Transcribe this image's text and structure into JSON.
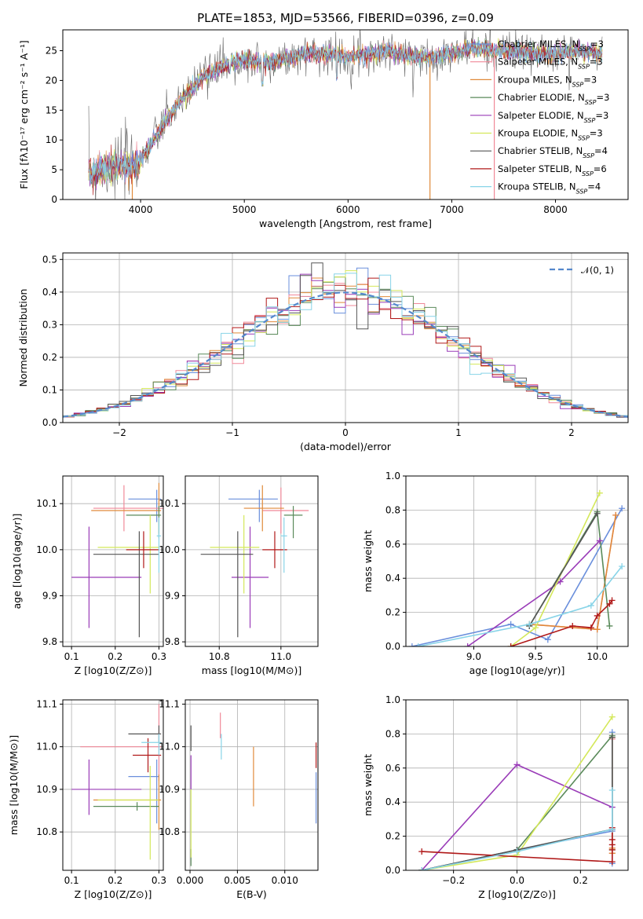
{
  "title": "PLATE=1853, MJD=53566, FIBERID=0396, z=0.09",
  "colors": {
    "Chabrier MILES": "#6a8fdc",
    "Salpeter MILES": "#f08898",
    "Kroupa MILES": "#e08a3a",
    "Chabrier ELODIE": "#5a8a5a",
    "Salpeter ELODIE": "#9a3cb8",
    "Kroupa ELODIE": "#d4e85a",
    "Chabrier STELIB": "#555555",
    "Salpeter STELIB": "#b01818",
    "Kroupa STELIB": "#88d4e8"
  },
  "chart_data": [
    {
      "type": "line",
      "panel": "spectrum",
      "title": "PLATE=1853, MJD=53566, FIBERID=0396, z=0.09",
      "xlabel": "wavelength [Angstrom, rest frame]",
      "ylabel": "Flux [fλ10⁻¹⁷ erg cm⁻² s⁻¹ A⁻¹]",
      "xlim": [
        3250,
        8700
      ],
      "ylim": [
        0,
        28.5
      ],
      "xticks": [
        4000,
        5000,
        6000,
        7000,
        8000
      ],
      "yticks": [
        0,
        5,
        10,
        15,
        20,
        25
      ],
      "grid": false,
      "legend_position": "top-right",
      "legend": [
        {
          "name": "Chabrier MILES",
          "nssp": "3"
        },
        {
          "name": "Salpeter MILES",
          "nssp": "3"
        },
        {
          "name": "Kroupa MILES",
          "nssp": "3"
        },
        {
          "name": "Chabrier ELODIE",
          "nssp": "3"
        },
        {
          "name": "Salpeter ELODIE",
          "nssp": "3"
        },
        {
          "name": "Kroupa ELODIE",
          "nssp": "3"
        },
        {
          "name": "Chabrier STELIB",
          "nssp": "4"
        },
        {
          "name": "Salpeter STELIB",
          "nssp": "6"
        },
        {
          "name": "Kroupa STELIB",
          "nssp": "4"
        }
      ],
      "continuum": {
        "x": [
          3500,
          3700,
          3900,
          4000,
          4200,
          4400,
          4600,
          4800,
          5000,
          5200,
          5400,
          5600,
          5800,
          6000,
          6200,
          6400,
          6600,
          6800,
          7000,
          7200,
          7400,
          7600,
          7800,
          8000,
          8200,
          8400
        ],
        "y": [
          4.5,
          5.5,
          5.5,
          6.5,
          12,
          17,
          20.5,
          22.5,
          23.5,
          23,
          23.5,
          24.5,
          24.5,
          24,
          24.5,
          25,
          24,
          24,
          24.5,
          25.5,
          25,
          25,
          24.5,
          24.5,
          25,
          24.5
        ]
      },
      "features": [
        {
          "x": 5175,
          "y": 19
        },
        {
          "x": 5890,
          "y": 20
        },
        {
          "x": 4340,
          "y": 17
        },
        {
          "x": 4860,
          "y": 21
        }
      ],
      "spikes": [
        {
          "series": "Kroupa MILES",
          "x": 3920,
          "y": 0
        },
        {
          "series": "Kroupa MILES",
          "x": 6790,
          "y": 0
        },
        {
          "series": "Salpeter MILES",
          "x": 7410,
          "y": 0
        },
        {
          "series": "Salpeter STELIB",
          "x": 3890,
          "y": 5.8
        }
      ]
    },
    {
      "type": "histogram",
      "panel": "residuals",
      "xlabel": "(data-model)/error",
      "ylabel": "Normed distribution",
      "xlim": [
        -2.5,
        2.5
      ],
      "ylim": [
        0,
        0.52
      ],
      "xticks": [
        -2,
        -1,
        0,
        1,
        2
      ],
      "yticks": [
        0.0,
        0.1,
        0.2,
        0.3,
        0.4,
        0.5
      ],
      "grid": true,
      "legend_position": "top-right",
      "reference": {
        "name": "𝒩(0, 1)",
        "dist": "gaussian",
        "mu": 0,
        "sigma": 1
      },
      "bin_width": 0.1,
      "bin_start": -2.5,
      "series_names": [
        "Chabrier MILES",
        "Salpeter MILES",
        "Kroupa MILES",
        "Chabrier ELODIE",
        "Salpeter ELODIE",
        "Kroupa ELODIE",
        "Chabrier STELIB",
        "Salpeter STELIB",
        "Kroupa STELIB"
      ]
    },
    {
      "type": "scatter",
      "panel": "age_vs_Z",
      "xlabel": "Z [log10(Z/Z⊙)]",
      "ylabel": "age  [log10(age/yr)]",
      "xlim": [
        0.08,
        0.31
      ],
      "ylim": [
        9.79,
        10.16
      ],
      "xticks": [
        0.1,
        0.2,
        0.3
      ],
      "yticks": [
        9.8,
        9.9,
        10.0,
        10.1
      ],
      "grid": true,
      "points": [
        {
          "series": "Chabrier MILES",
          "x": 0.295,
          "xerr": [
            0.065,
            0.01
          ],
          "y": 10.11,
          "yerr": [
            0.05,
            0.02
          ]
        },
        {
          "series": "Salpeter MILES",
          "x": 0.22,
          "xerr": [
            0.07,
            0.09
          ],
          "y": 10.09,
          "yerr": [
            0.05,
            0.05
          ]
        },
        {
          "series": "Kroupa MILES",
          "x": 0.3,
          "xerr": [
            0.155,
            0.005
          ],
          "y": 10.085,
          "yerr": [
            0.05,
            0.06
          ]
        },
        {
          "series": "Chabrier ELODIE",
          "x": 0.3,
          "xerr": [
            0.075,
            0.005
          ],
          "y": 10.075,
          "yerr": [
            0.05,
            0.02
          ]
        },
        {
          "series": "Salpeter ELODIE",
          "x": 0.14,
          "xerr": [
            0.04,
            0.12
          ],
          "y": 9.94,
          "yerr": [
            0.11,
            0.11
          ]
        },
        {
          "series": "Kroupa ELODIE",
          "x": 0.28,
          "xerr": [
            0.12,
            0.02
          ],
          "y": 10.005,
          "yerr": [
            0.1,
            0.07
          ]
        },
        {
          "series": "Chabrier STELIB",
          "x": 0.255,
          "xerr": [
            0.105,
            0.045
          ],
          "y": 9.99,
          "yerr": [
            0.18,
            0.05
          ]
        },
        {
          "series": "Salpeter STELIB",
          "x": 0.265,
          "xerr": [
            0.04,
            0.035
          ],
          "y": 10.0,
          "yerr": [
            0.04,
            0.04
          ]
        },
        {
          "series": "Kroupa STELIB",
          "x": 0.3,
          "xerr": [
            0.005,
            0.005
          ],
          "y": 10.03,
          "yerr": [
            0.08,
            0.04
          ]
        }
      ]
    },
    {
      "type": "scatter",
      "panel": "age_vs_mass",
      "xlabel": "mass [log10(M/M⊙)]",
      "ylabel": "",
      "xlim": [
        10.69,
        11.12
      ],
      "ylim": [
        9.79,
        10.16
      ],
      "xticks": [
        10.8,
        11.0
      ],
      "yticks": [
        9.8,
        9.9,
        10.0,
        10.1
      ],
      "grid": true,
      "points": [
        {
          "series": "Chabrier MILES",
          "x": 10.93,
          "xerr": [
            0.1,
            0.06
          ],
          "y": 10.11,
          "yerr": [
            0.05,
            0.02
          ]
        },
        {
          "series": "Salpeter MILES",
          "x": 11.0,
          "xerr": [
            0.06,
            0.09
          ],
          "y": 10.085,
          "yerr": [
            0.05,
            0.05
          ]
        },
        {
          "series": "Kroupa MILES",
          "x": 10.94,
          "xerr": [
            0.06,
            0.07
          ],
          "y": 10.09,
          "yerr": [
            0.05,
            0.05
          ]
        },
        {
          "series": "Chabrier ELODIE",
          "x": 11.04,
          "xerr": [
            0.03,
            0.03
          ],
          "y": 10.075,
          "yerr": [
            0.05,
            0.02
          ]
        },
        {
          "series": "Salpeter ELODIE",
          "x": 10.9,
          "xerr": [
            0.06,
            0.06
          ],
          "y": 9.94,
          "yerr": [
            0.11,
            0.11
          ]
        },
        {
          "series": "Kroupa ELODIE",
          "x": 10.88,
          "xerr": [
            0.11,
            0.05
          ],
          "y": 10.005,
          "yerr": [
            0.1,
            0.07
          ]
        },
        {
          "series": "Chabrier STELIB",
          "x": 10.86,
          "xerr": [
            0.12,
            0.05
          ],
          "y": 9.99,
          "yerr": [
            0.18,
            0.05
          ]
        },
        {
          "series": "Salpeter STELIB",
          "x": 10.98,
          "xerr": [
            0.04,
            0.04
          ],
          "y": 10.0,
          "yerr": [
            0.04,
            0.04
          ]
        },
        {
          "series": "Kroupa STELIB",
          "x": 11.01,
          "xerr": [
            0.01,
            0.01
          ],
          "y": 10.03,
          "yerr": [
            0.08,
            0.04
          ]
        }
      ]
    },
    {
      "type": "line",
      "panel": "weight_vs_age",
      "xlabel": "age  [log10(age/yr)]",
      "ylabel": "mass weight",
      "xlim": [
        8.45,
        10.25
      ],
      "ylim": [
        0,
        1.0
      ],
      "xticks": [
        9.0,
        9.5,
        10.0
      ],
      "yticks": [
        0.0,
        0.2,
        0.4,
        0.6,
        0.8,
        1.0
      ],
      "grid": true,
      "series": [
        {
          "name": "Chabrier MILES",
          "x": [
            8.5,
            9.3,
            9.6,
            10.2
          ],
          "y": [
            0.0,
            0.13,
            0.04,
            0.81
          ]
        },
        {
          "name": "Salpeter MILES",
          "x": [
            9.45,
            10.0,
            10.15
          ],
          "y": [
            0.13,
            0.1,
            0.77
          ]
        },
        {
          "name": "Kroupa MILES",
          "x": [
            9.45,
            10.0,
            10.15
          ],
          "y": [
            0.13,
            0.1,
            0.77
          ]
        },
        {
          "name": "Chabrier ELODIE",
          "x": [
            9.45,
            10.0,
            10.1
          ],
          "y": [
            0.12,
            0.79,
            0.12
          ]
        },
        {
          "name": "Salpeter ELODIE",
          "x": [
            8.95,
            9.7,
            10.02
          ],
          "y": [
            0.0,
            0.38,
            0.62
          ]
        },
        {
          "name": "Kroupa ELODIE",
          "x": [
            9.3,
            9.5,
            10.02
          ],
          "y": [
            0.0,
            0.11,
            0.9
          ]
        },
        {
          "name": "Chabrier STELIB",
          "x": [
            9.45,
            10.0
          ],
          "y": [
            0.12,
            0.78
          ]
        },
        {
          "name": "Salpeter STELIB",
          "x": [
            9.3,
            9.8,
            9.95,
            10.0,
            10.1,
            10.12
          ],
          "y": [
            0.0,
            0.12,
            0.11,
            0.18,
            0.25,
            0.27
          ]
        },
        {
          "name": "Kroupa STELIB",
          "x": [
            8.55,
            9.45,
            9.95,
            10.2
          ],
          "y": [
            0.0,
            0.13,
            0.24,
            0.47
          ]
        }
      ]
    },
    {
      "type": "scatter",
      "panel": "mass_vs_Z",
      "xlabel": "Z [log10(Z/Z⊙)]",
      "ylabel": "mass [log10(M/M⊙)]",
      "xlim": [
        0.08,
        0.31
      ],
      "ylim": [
        10.71,
        11.11
      ],
      "xticks": [
        0.1,
        0.2,
        0.3
      ],
      "yticks": [
        10.8,
        10.9,
        11.0,
        11.1
      ],
      "grid": true,
      "points": [
        {
          "series": "Chabrier MILES",
          "x": 0.295,
          "xerr": [
            0.065,
            0.005
          ],
          "y": 10.93,
          "yerr": [
            0.11,
            0.04
          ]
        },
        {
          "series": "Salpeter MILES",
          "x": 0.3,
          "xerr": [
            0.18,
            0.005
          ],
          "y": 11.0,
          "yerr": [
            0.08,
            0.1
          ]
        },
        {
          "series": "Kroupa MILES",
          "x": 0.3,
          "xerr": [
            0.15,
            0.005
          ],
          "y": 10.875,
          "yerr": [
            0.07,
            0.06
          ]
        },
        {
          "series": "Chabrier ELODIE",
          "x": 0.25,
          "xerr": [
            0.1,
            0.05
          ],
          "y": 10.86,
          "yerr": [
            0.01,
            0.01
          ]
        },
        {
          "series": "Salpeter ELODIE",
          "x": 0.14,
          "xerr": [
            0.04,
            0.12
          ],
          "y": 10.9,
          "yerr": [
            0.06,
            0.07
          ]
        },
        {
          "series": "Kroupa ELODIE",
          "x": 0.28,
          "xerr": [
            0.12,
            0.02
          ],
          "y": 10.875,
          "yerr": [
            0.14,
            0.08
          ]
        },
        {
          "series": "Chabrier STELIB",
          "x": 0.3,
          "xerr": [
            0.07,
            0.005
          ],
          "y": 11.03,
          "yerr": [
            0.02,
            0.02
          ]
        },
        {
          "series": "Salpeter STELIB",
          "x": 0.275,
          "xerr": [
            0.035,
            0.03
          ],
          "y": 10.98,
          "yerr": [
            0.04,
            0.04
          ]
        },
        {
          "series": "Kroupa STELIB",
          "x": 0.3,
          "xerr": [
            0.04,
            0.005
          ],
          "y": 11.01,
          "yerr": [
            0.03,
            0.02
          ]
        }
      ]
    },
    {
      "type": "scatter",
      "panel": "mass_vs_EBV",
      "xlabel": "E(B-V)",
      "ylabel": "",
      "xlim": [
        -0.0005,
        0.0135
      ],
      "ylim": [
        10.71,
        11.11
      ],
      "xticks": [
        0.0,
        0.005,
        0.01
      ],
      "yticks": [
        10.8,
        10.9,
        11.0,
        11.1
      ],
      "xticklabels": [
        "0.000",
        "0.005",
        "0.010"
      ],
      "grid": true,
      "points": [
        {
          "series": "Chabrier MILES",
          "x": 0.0133,
          "y": 10.88,
          "yerr": [
            0.06,
            0.06
          ]
        },
        {
          "series": "Salpeter MILES",
          "x": 0.0032,
          "y": 11.05,
          "yerr": [
            0.03,
            0.03
          ]
        },
        {
          "series": "Kroupa MILES",
          "x": 0.0067,
          "y": 10.93,
          "yerr": [
            0.07,
            0.07
          ]
        },
        {
          "series": "Chabrier ELODIE",
          "x": 0.0001,
          "y": 10.74,
          "yerr": [
            0.02,
            0.02
          ]
        },
        {
          "series": "Salpeter ELODIE",
          "x": 0.0001,
          "y": 10.94,
          "yerr": [
            0.04,
            0.04
          ]
        },
        {
          "series": "Kroupa ELODIE",
          "x": 0.0001,
          "y": 10.82,
          "yerr": [
            0.08,
            0.08
          ]
        },
        {
          "series": "Chabrier STELIB",
          "x": 0.0001,
          "y": 11.02,
          "yerr": [
            0.03,
            0.03
          ]
        },
        {
          "series": "Salpeter STELIB",
          "x": 0.0133,
          "y": 10.98,
          "yerr": [
            0.03,
            0.03
          ]
        },
        {
          "series": "Kroupa STELIB",
          "x": 0.0033,
          "y": 11.0,
          "yerr": [
            0.03,
            0.03
          ]
        }
      ]
    },
    {
      "type": "line",
      "panel": "weight_vs_Z",
      "xlabel": "Z [log10(Z/Z⊙)]",
      "ylabel": "mass weight",
      "xlim": [
        -0.35,
        0.35
      ],
      "ylim": [
        0,
        1.0
      ],
      "xticks": [
        -0.2,
        0.0,
        0.2
      ],
      "yticks": [
        0.0,
        0.2,
        0.4,
        0.6,
        0.8,
        1.0
      ],
      "grid": true,
      "series": [
        {
          "name": "Chabrier MILES",
          "x": [
            -0.3,
            0.0,
            0.3,
            0.3,
            0.3
          ],
          "y": [
            0.0,
            0.12,
            0.23,
            0.81,
            0.04
          ]
        },
        {
          "name": "Salpeter MILES",
          "x": [
            0.3,
            0.3,
            0.3
          ],
          "y": [
            0.1,
            0.13,
            0.77
          ]
        },
        {
          "name": "Kroupa MILES",
          "x": [
            0.3,
            0.3,
            0.3
          ],
          "y": [
            0.1,
            0.13,
            0.78
          ]
        },
        {
          "name": "Chabrier ELODIE",
          "x": [
            -0.3,
            0.0,
            0.3,
            0.3
          ],
          "y": [
            0.0,
            0.12,
            0.79,
            0.12
          ]
        },
        {
          "name": "Salpeter ELODIE",
          "x": [
            -0.3,
            0.0,
            0.3
          ],
          "y": [
            0.0,
            0.62,
            0.37
          ]
        },
        {
          "name": "Kroupa ELODIE",
          "x": [
            -0.3,
            0.0,
            0.3
          ],
          "y": [
            0.0,
            0.09,
            0.9
          ]
        },
        {
          "name": "Chabrier STELIB",
          "x": [
            -0.3,
            0.0,
            0.3,
            0.3
          ],
          "y": [
            0.0,
            0.12,
            0.24,
            0.78
          ]
        },
        {
          "name": "Salpeter STELIB",
          "x": [
            -0.3,
            0.3,
            0.3,
            0.3,
            0.3,
            0.3
          ],
          "y": [
            0.11,
            0.05,
            0.12,
            0.15,
            0.18,
            0.25
          ]
        },
        {
          "name": "Kroupa STELIB",
          "x": [
            -0.3,
            0.0,
            0.3,
            0.3
          ],
          "y": [
            0.0,
            0.11,
            0.24,
            0.47
          ]
        }
      ]
    }
  ]
}
